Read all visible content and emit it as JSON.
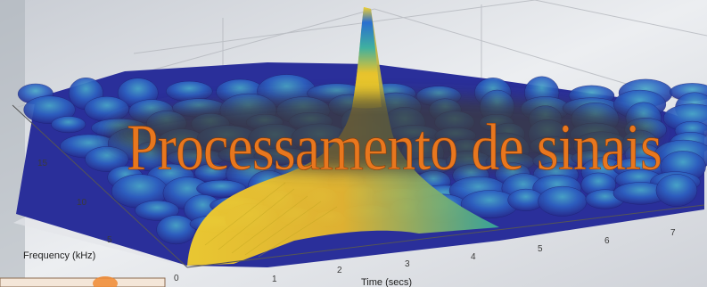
{
  "title": "Processamento de sinais",
  "axes": {
    "xlabel": "Time (secs)",
    "ylabel": "Frequency (kHz)",
    "x_ticks": [
      "0",
      "1",
      "2",
      "3",
      "4",
      "5",
      "6",
      "7"
    ],
    "y_ticks": [
      "5",
      "10",
      "15"
    ]
  },
  "colors": {
    "title": "#e8771e",
    "surface_low": "#2b2f9a",
    "surface_high": "#f2c82a"
  }
}
